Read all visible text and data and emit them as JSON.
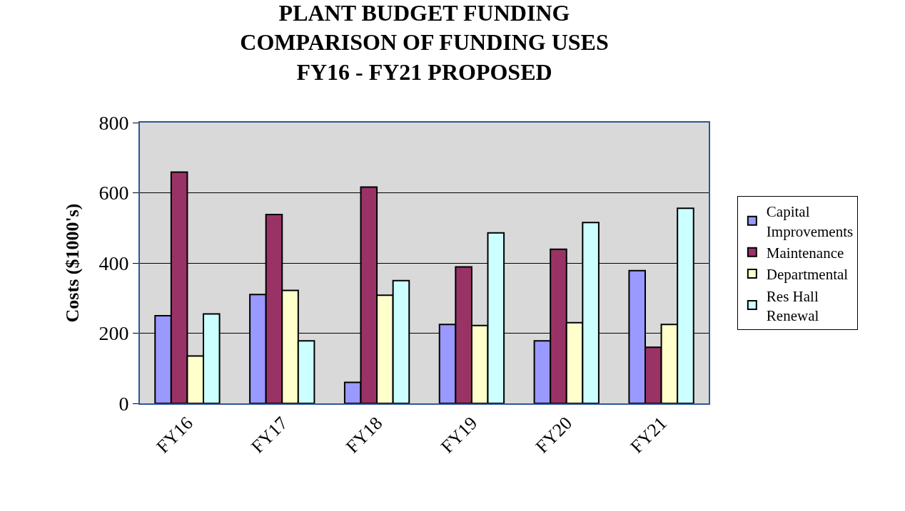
{
  "chart_data": {
    "type": "bar",
    "title": "PLANT BUDGET FUNDING\nCOMPARISON OF FUNDING USES\nFY16 - FY21 PROPOSED",
    "ylabel": "Costs ($1000's)",
    "categories": [
      "FY16",
      "FY17",
      "FY18",
      "FY19",
      "FY20",
      "FY21"
    ],
    "series": [
      {
        "name": "Capital\nImprovements",
        "color": "#9999ff",
        "values": [
          250,
          310,
          60,
          225,
          178,
          378
        ]
      },
      {
        "name": "Maintenance",
        "color": "#993366",
        "values": [
          659,
          538,
          616,
          389,
          439,
          160
        ]
      },
      {
        "name": "Departmental",
        "color": "#ffffcc",
        "values": [
          135,
          322,
          308,
          222,
          230,
          225
        ]
      },
      {
        "name": "Res Hall\nRenewal",
        "color": "#ccffff",
        "values": [
          255,
          178,
          350,
          486,
          515,
          556
        ]
      }
    ],
    "ylim": [
      0,
      800
    ],
    "yticks": [
      0,
      200,
      400,
      600,
      800
    ],
    "grid": "y",
    "legend": "right"
  }
}
